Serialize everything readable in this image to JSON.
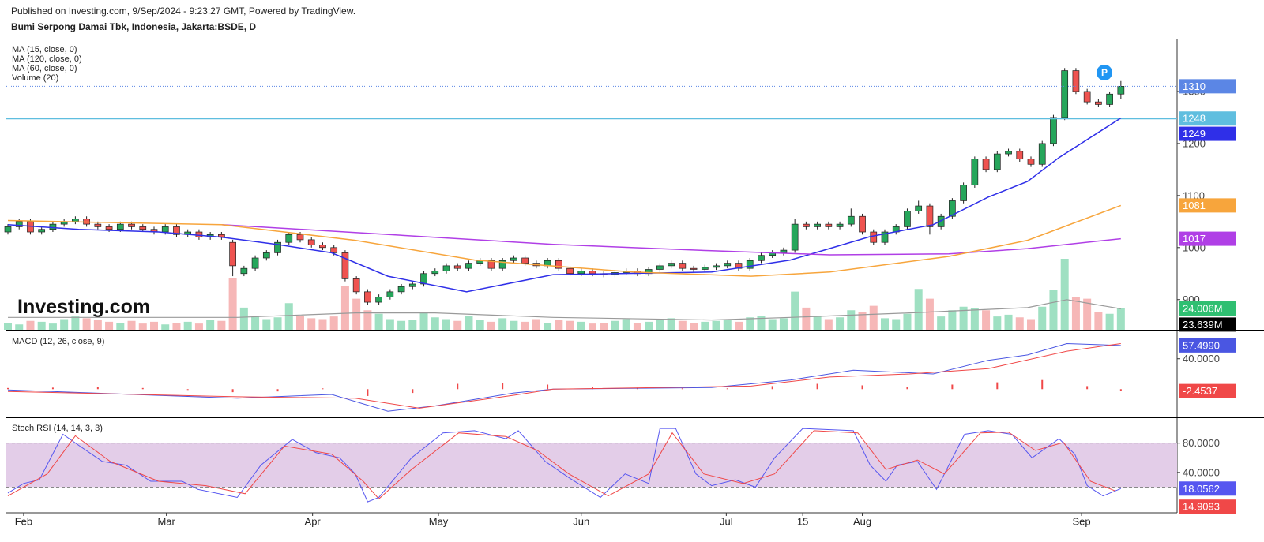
{
  "header": {
    "published": "Published on Investing.com, 9/Sep/2024 - 9:23:27 GMT, Powered by TradingView."
  },
  "logo": "Investing.com",
  "marker": "P",
  "chart_data": [
    {
      "type": "candlestick",
      "title": "Bumi Serpong Damai Tbk, Indonesia, Jakarta:BSDE, D",
      "ylim": [
        842,
        1400
      ],
      "yticks": [
        900,
        1000,
        1100,
        1200,
        1300
      ],
      "up_color": "#26a65b",
      "down_color": "#ef5350",
      "last_price": {
        "color": "#5b86e5"
      },
      "hline": {
        "value": 1248,
        "color": "#5fbedf"
      },
      "candles": [
        [
          1030,
          1045,
          1025,
          1040
        ],
        [
          1040,
          1055,
          1035,
          1050
        ],
        [
          1050,
          1055,
          1025,
          1030
        ],
        [
          1030,
          1040,
          1025,
          1035
        ],
        [
          1035,
          1050,
          1030,
          1045
        ],
        [
          1045,
          1055,
          1040,
          1050
        ],
        [
          1050,
          1060,
          1045,
          1055
        ],
        [
          1055,
          1060,
          1040,
          1045
        ],
        [
          1045,
          1050,
          1035,
          1040
        ],
        [
          1040,
          1045,
          1030,
          1035
        ],
        [
          1035,
          1050,
          1030,
          1045
        ],
        [
          1045,
          1050,
          1035,
          1040
        ],
        [
          1040,
          1045,
          1030,
          1035
        ],
        [
          1035,
          1040,
          1025,
          1030
        ],
        [
          1030,
          1045,
          1025,
          1040
        ],
        [
          1040,
          1045,
          1020,
          1025
        ],
        [
          1025,
          1035,
          1020,
          1030
        ],
        [
          1030,
          1035,
          1015,
          1020
        ],
        [
          1020,
          1030,
          1015,
          1025
        ],
        [
          1025,
          1030,
          1015,
          1020
        ],
        [
          1010,
          1015,
          945,
          965
        ],
        [
          950,
          965,
          945,
          960
        ],
        [
          960,
          985,
          955,
          980
        ],
        [
          980,
          995,
          975,
          990
        ],
        [
          990,
          1015,
          985,
          1010
        ],
        [
          1010,
          1030,
          1005,
          1025
        ],
        [
          1025,
          1030,
          1010,
          1015
        ],
        [
          1015,
          1020,
          1000,
          1005
        ],
        [
          1005,
          1010,
          995,
          1000
        ],
        [
          1000,
          1005,
          985,
          990
        ],
        [
          990,
          995,
          935,
          940
        ],
        [
          940,
          945,
          910,
          915
        ],
        [
          915,
          920,
          890,
          895
        ],
        [
          895,
          910,
          890,
          905
        ],
        [
          905,
          920,
          900,
          915
        ],
        [
          915,
          930,
          910,
          925
        ],
        [
          925,
          935,
          920,
          930
        ],
        [
          930,
          955,
          925,
          950
        ],
        [
          950,
          960,
          945,
          955
        ],
        [
          955,
          970,
          950,
          965
        ],
        [
          965,
          970,
          955,
          960
        ],
        [
          960,
          975,
          955,
          970
        ],
        [
          970,
          980,
          965,
          975
        ],
        [
          975,
          980,
          955,
          960
        ],
        [
          960,
          980,
          955,
          975
        ],
        [
          975,
          985,
          970,
          980
        ],
        [
          980,
          985,
          965,
          970
        ],
        [
          970,
          975,
          960,
          965
        ],
        [
          965,
          980,
          960,
          975
        ],
        [
          975,
          980,
          955,
          960
        ],
        [
          960,
          965,
          945,
          950
        ],
        [
          950,
          960,
          945,
          955
        ],
        [
          955,
          960,
          945,
          950
        ],
        [
          950,
          955,
          943,
          948
        ],
        [
          948,
          957,
          943,
          952
        ],
        [
          952,
          960,
          947,
          955
        ],
        [
          955,
          960,
          945,
          950
        ],
        [
          950,
          963,
          945,
          958
        ],
        [
          958,
          970,
          953,
          965
        ],
        [
          965,
          975,
          960,
          970
        ],
        [
          970,
          975,
          955,
          960
        ],
        [
          960,
          965,
          953,
          958
        ],
        [
          958,
          967,
          953,
          962
        ],
        [
          962,
          970,
          957,
          965
        ],
        [
          965,
          975,
          960,
          970
        ],
        [
          970,
          975,
          955,
          960
        ],
        [
          960,
          980,
          955,
          975
        ],
        [
          975,
          990,
          970,
          985
        ],
        [
          985,
          995,
          980,
          990
        ],
        [
          990,
          1000,
          985,
          995
        ],
        [
          995,
          1055,
          990,
          1045
        ],
        [
          1045,
          1050,
          1035,
          1040
        ],
        [
          1040,
          1050,
          1035,
          1045
        ],
        [
          1045,
          1050,
          1035,
          1040
        ],
        [
          1040,
          1050,
          1035,
          1045
        ],
        [
          1045,
          1075,
          1040,
          1060
        ],
        [
          1060,
          1065,
          1025,
          1030
        ],
        [
          1030,
          1035,
          1005,
          1010
        ],
        [
          1010,
          1035,
          1005,
          1030
        ],
        [
          1030,
          1045,
          1025,
          1040
        ],
        [
          1040,
          1075,
          1035,
          1070
        ],
        [
          1070,
          1090,
          1065,
          1080
        ],
        [
          1080,
          1085,
          1025,
          1040
        ],
        [
          1040,
          1065,
          1035,
          1060
        ],
        [
          1060,
          1095,
          1055,
          1090
        ],
        [
          1090,
          1125,
          1085,
          1120
        ],
        [
          1120,
          1175,
          1115,
          1170
        ],
        [
          1170,
          1175,
          1145,
          1150
        ],
        [
          1150,
          1185,
          1145,
          1180
        ],
        [
          1180,
          1190,
          1175,
          1185
        ],
        [
          1185,
          1190,
          1165,
          1170
        ],
        [
          1170,
          1175,
          1155,
          1160
        ],
        [
          1160,
          1205,
          1155,
          1200
        ],
        [
          1200,
          1255,
          1195,
          1250
        ],
        [
          1250,
          1345,
          1245,
          1340
        ],
        [
          1340,
          1345,
          1295,
          1300
        ],
        [
          1300,
          1305,
          1275,
          1280
        ],
        [
          1280,
          1285,
          1270,
          1275
        ],
        [
          1275,
          1300,
          1270,
          1295
        ],
        [
          1295,
          1320,
          1285,
          1310
        ]
      ],
      "volume": {
        "name": "Volume (20)",
        "up_color": "#9fe0c2",
        "down_color": "#f6b7b7",
        "box_color": "#2fbf71",
        "last_label": "24.006M",
        "values": [
          8,
          6,
          10,
          9,
          7,
          12,
          15,
          13,
          11,
          9,
          8,
          10,
          7,
          9,
          6,
          8,
          9,
          7,
          11,
          10,
          58,
          25,
          15,
          12,
          14,
          30,
          16,
          13,
          12,
          15,
          49,
          35,
          22,
          18,
          12,
          10,
          11,
          20,
          14,
          12,
          10,
          16,
          11,
          9,
          13,
          10,
          9,
          12,
          8,
          11,
          10,
          9,
          7,
          8,
          10,
          12,
          8,
          9,
          11,
          13,
          10,
          8,
          9,
          10,
          12,
          9,
          14,
          16,
          12,
          13,
          43,
          25,
          15,
          12,
          14,
          22,
          20,
          27,
          13,
          12,
          18,
          46,
          35,
          15,
          22,
          26,
          24,
          22,
          15,
          17,
          14,
          12,
          26,
          45,
          80,
          37,
          35,
          20,
          18,
          24.006
        ]
      },
      "volume_ma": {
        "color": "#9a9a9a",
        "box_color": "#000000",
        "last_label": "23.639M",
        "x": [
          0,
          20.4,
          30.9,
          38,
          48.5,
          62.6,
          69.6,
          80.2,
          83.7,
          90.7,
          94.2,
          99
        ],
        "values": [
          14,
          14,
          19,
          19,
          14,
          11,
          14,
          19,
          21,
          25,
          34,
          23.639
        ]
      },
      "series": [
        {
          "name": "MA (15, close, 0)",
          "color": "#2f2fe8",
          "box": true,
          "x": [
            0,
            6.3,
            13.4,
            19,
            23.9,
            28.8,
            33.8,
            40.8,
            48.5,
            62.6,
            69.6,
            76.7,
            82.3,
            87.2,
            90.7,
            93.5,
            99
          ],
          "values": [
            1044,
            1035,
            1030,
            1020,
            1006,
            990,
            945,
            915,
            948,
            953,
            976,
            1021,
            1044,
            1097,
            1127,
            1173,
            1249
          ]
        },
        {
          "name": "MA (120, close, 0)",
          "color": "#b03fe6",
          "box": true,
          "x": [
            19,
            30.9,
            48.5,
            62.6,
            73.1,
            83.7,
            90.7,
            99
          ],
          "values": [
            1044,
            1029,
            1006,
            994,
            986,
            988,
            998,
            1017
          ]
        },
        {
          "name": "MA (60, close, 0)",
          "color": "#f7a53c",
          "box": true,
          "x": [
            0,
            19,
            30.9,
            41.5,
            55.6,
            66.1,
            73.1,
            83.7,
            90.7,
            99
          ],
          "values": [
            1052,
            1044,
            1014,
            976,
            953,
            945,
            953,
            983,
            1014,
            1081
          ]
        }
      ]
    },
    {
      "type": "line",
      "title": "MACD (12, 26, close, 9)",
      "ylim": [
        -35,
        75
      ],
      "yticks": [
        {
          "value": 40,
          "label": "40.0000"
        }
      ],
      "histogram": {
        "color": "#f04848",
        "box": true,
        "x": [
          0,
          4,
          8,
          12,
          16,
          20,
          24,
          28,
          32,
          36,
          40,
          44,
          48,
          52,
          56,
          60,
          64,
          68,
          72,
          76,
          80,
          84,
          88,
          92,
          96,
          99
        ],
        "values": [
          1.5,
          2,
          2.5,
          1.5,
          -1,
          -4,
          -3,
          1,
          -9,
          -5,
          7,
          8,
          6,
          3,
          2,
          1,
          1,
          4,
          7,
          5,
          3,
          6,
          9,
          12,
          4,
          -2.4537
        ]
      },
      "series": [
        {
          "color": "#4a56e2",
          "box": true,
          "last_label": "57.4990",
          "x": [
            0,
            20.4,
            28.8,
            33.8,
            38,
            45,
            48.5,
            62.6,
            69.6,
            75.2,
            82.3,
            87.2,
            90.7,
            94.2,
            99
          ],
          "values": [
            -1,
            -12,
            -7,
            -29,
            -22,
            -5,
            0,
            2,
            12,
            25,
            20,
            38,
            45,
            60,
            57.499
          ]
        },
        {
          "color": "#f04848",
          "x": [
            0,
            20.4,
            30.9,
            36.6,
            45,
            48.5,
            66.1,
            73.1,
            80.2,
            87.2,
            94.2,
            99
          ],
          "values": [
            -3,
            -10,
            -12,
            -25,
            -8,
            0,
            4,
            16,
            20,
            27,
            50,
            59.95
          ]
        }
      ]
    },
    {
      "type": "line",
      "title": "Stoch RSI (14, 14, 3, 3)",
      "ylim": [
        -15,
        113
      ],
      "yticks": [
        {
          "value": 80,
          "label": "80.0000"
        },
        {
          "value": 40,
          "label": "40.0000"
        }
      ],
      "band": [
        20,
        80
      ],
      "band_color": "#e3cde8",
      "xlim": [
        0,
        104
      ],
      "xticks": [
        {
          "value": 1.4,
          "label": "Feb"
        },
        {
          "value": 14.1,
          "label": "Mar"
        },
        {
          "value": 27.1,
          "label": "Apr"
        },
        {
          "value": 38.3,
          "label": "May"
        },
        {
          "value": 51,
          "label": "Jun"
        },
        {
          "value": 63.9,
          "label": "Jul"
        },
        {
          "value": 70.7,
          "label": "15"
        },
        {
          "value": 76,
          "label": "Aug"
        },
        {
          "value": 95.5,
          "label": "Sep"
        }
      ],
      "series": [
        {
          "color": "#5656f0",
          "box": true,
          "x": [
            0,
            1.4,
            2.8,
            4.9,
            6.3,
            8.4,
            10.5,
            12.7,
            15.5,
            16.9,
            20.4,
            22.5,
            25.3,
            27.4,
            29.5,
            30.9,
            32,
            33,
            35.9,
            38.7,
            41.5,
            44.3,
            45.4,
            47.8,
            49.9,
            52.7,
            54.9,
            57,
            58,
            59.4,
            61.2,
            62.6,
            64.7,
            66.5,
            68.2,
            70.7,
            75.2,
            76.7,
            78.1,
            79.1,
            80.9,
            82.6,
            85.1,
            87.2,
            89.3,
            91.1,
            93.5,
            94.9,
            96,
            97.4,
            99
          ],
          "values": [
            12,
            25,
            30,
            92,
            77,
            55,
            50,
            28,
            28,
            17,
            6,
            50,
            85,
            67,
            60,
            38,
            0,
            6,
            60,
            94,
            97,
            86,
            97,
            55,
            33,
            6,
            38,
            25,
            100,
            100,
            38,
            22,
            30,
            20,
            60,
            100,
            97,
            50,
            28,
            50,
            55,
            17,
            92,
            97,
            92,
            60,
            86,
            65,
            22,
            8,
            18.0562
          ]
        },
        {
          "color": "#f04848",
          "box": true,
          "x": [
            0,
            3.5,
            6,
            9.1,
            13.4,
            17.6,
            21.1,
            24.6,
            28.8,
            31.6,
            33,
            35.9,
            40.1,
            44.3,
            47.1,
            49.9,
            53.4,
            57,
            59.1,
            61.9,
            65.4,
            68.2,
            71.7,
            75.6,
            78.1,
            80.9,
            83.3,
            86.5,
            89,
            91.4,
            93.9,
            96.3,
            98.5
          ],
          "values": [
            8,
            38,
            90,
            55,
            28,
            22,
            11,
            76,
            65,
            28,
            4,
            44,
            94,
            89,
            70,
            38,
            8,
            38,
            94,
            38,
            25,
            38,
            97,
            94,
            44,
            57,
            38,
            94,
            95,
            70,
            81,
            28,
            14.9093
          ]
        }
      ]
    }
  ]
}
